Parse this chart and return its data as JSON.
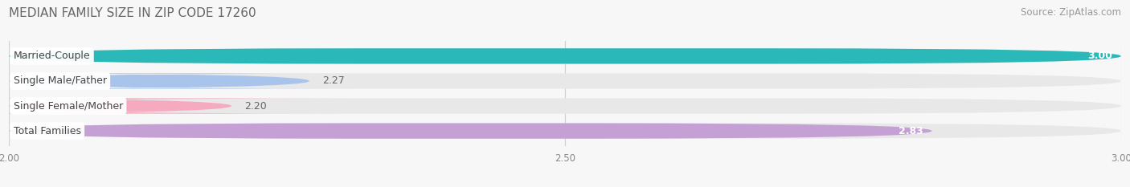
{
  "title": "MEDIAN FAMILY SIZE IN ZIP CODE 17260",
  "source": "Source: ZipAtlas.com",
  "categories": [
    "Married-Couple",
    "Single Male/Father",
    "Single Female/Mother",
    "Total Families"
  ],
  "values": [
    3.0,
    2.27,
    2.2,
    2.83
  ],
  "bar_colors": [
    "#2ab8b8",
    "#a8c4ea",
    "#f5aac0",
    "#c5a0d5"
  ],
  "value_labels": [
    "3.00",
    "2.27",
    "2.20",
    "2.83"
  ],
  "value_inside": [
    true,
    false,
    false,
    true
  ],
  "xlim": [
    2.0,
    3.0
  ],
  "xmin": 2.0,
  "xmax": 3.0,
  "xticks": [
    2.0,
    2.5,
    3.0
  ],
  "xtick_labels": [
    "2.00",
    "2.50",
    "3.00"
  ],
  "background_color": "#f7f7f7",
  "track_color": "#e8e8e8",
  "bar_height": 0.62,
  "title_fontsize": 11,
  "source_fontsize": 8.5,
  "label_fontsize": 9,
  "value_fontsize": 9
}
